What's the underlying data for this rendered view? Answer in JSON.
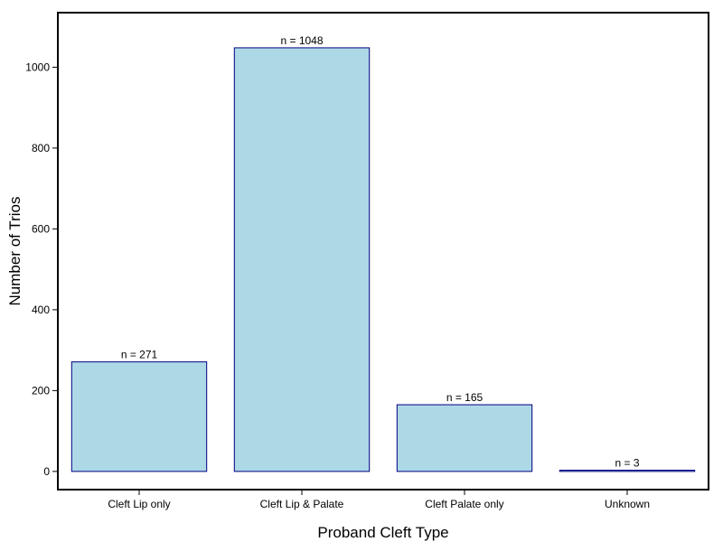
{
  "chart_data": {
    "type": "bar",
    "title": "",
    "xlabel": "Proband Cleft Type",
    "ylabel": "Number of Trios",
    "categories": [
      "Cleft Lip only",
      "Cleft Lip & Palate",
      "Cleft Palate only",
      "Unknown"
    ],
    "values": [
      271,
      1048,
      165,
      3
    ],
    "data_labels": [
      "n =  271",
      "n =  1048",
      "n =  165",
      "n =  3"
    ],
    "yticks": [
      0,
      200,
      400,
      600,
      800,
      1000
    ],
    "ytick_labels": [
      "0",
      "200",
      "400",
      "600",
      "800",
      "1000"
    ],
    "ylim": [
      -45,
      1135
    ],
    "grid": false,
    "legend": "none",
    "colors": {
      "bar_fill": "#add8e6",
      "bar_stroke": "#000080",
      "axis": "#000000",
      "background": "#ffffff"
    }
  }
}
